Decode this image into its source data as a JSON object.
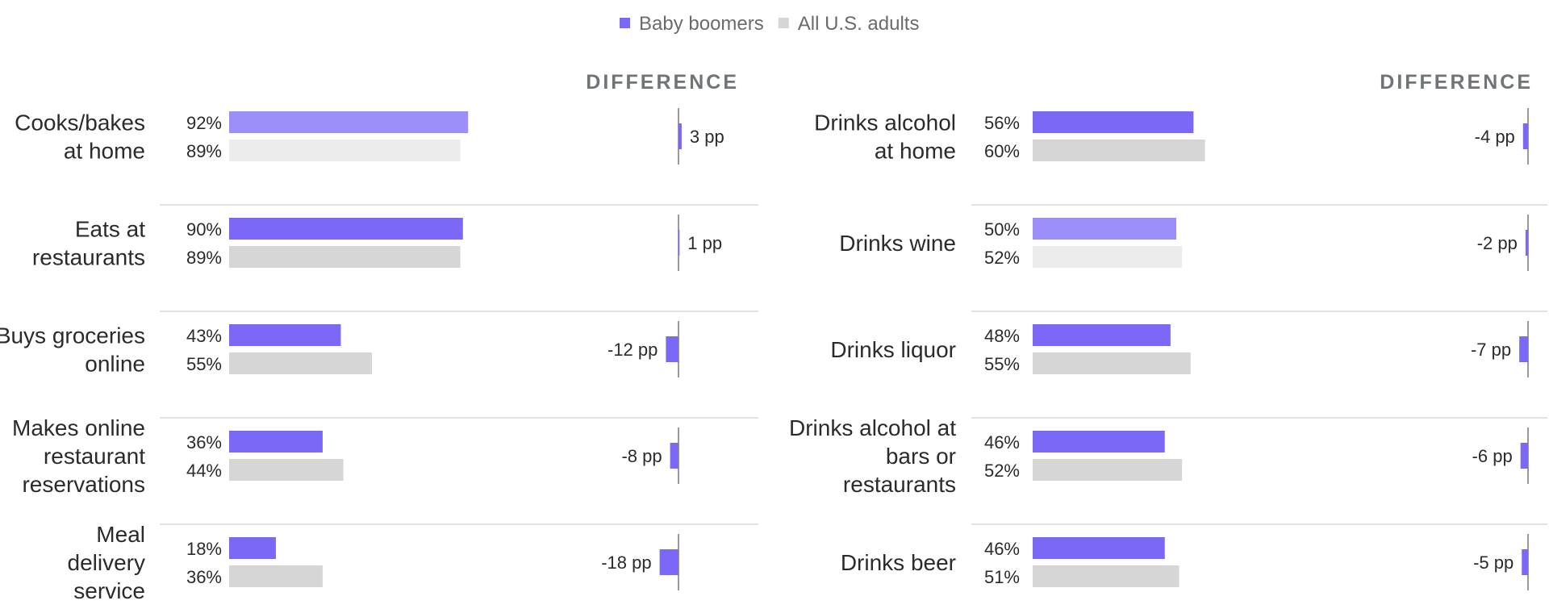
{
  "legend": {
    "series_a": "Baby boomers",
    "series_b": "All U.S. adults"
  },
  "colors": {
    "boomers": "#7b68f6",
    "boomers_highlight": "#9d8ffa",
    "adults": "#d6d6d6",
    "adults_highlight": "#ececec",
    "axis": "#9a9a9a",
    "divider": "#e3e3e3"
  },
  "chart_data": {
    "type": "bar",
    "orientation": "horizontal",
    "xlim": [
      0,
      100
    ],
    "difference_header": "DIFFERENCE",
    "panels": [
      {
        "categories": [
          "Cooks/bakes\nat home",
          "Eats at\nrestaurants",
          "Buys groceries\nonline",
          "Makes online\nrestaurant\nreservations",
          "Meal\ndelivery\nservice"
        ],
        "highlight_index": 0,
        "series": [
          {
            "name": "Baby boomers",
            "values": [
              92,
              90,
              43,
              36,
              18
            ],
            "value_labels": [
              "92%",
              "90%",
              "43%",
              "36%",
              "18%"
            ]
          },
          {
            "name": "All U.S. adults",
            "values": [
              89,
              89,
              55,
              44,
              36
            ],
            "value_labels": [
              "89%",
              "89%",
              "55%",
              "44%",
              "36%"
            ]
          }
        ],
        "difference": [
          3,
          1,
          -12,
          -8,
          -18
        ],
        "difference_labels": [
          "3 pp",
          "1 pp",
          "-12 pp",
          "-8 pp",
          "-18 pp"
        ]
      },
      {
        "categories": [
          "Drinks alcohol\nat home",
          "Drinks wine",
          "Drinks liquor",
          "Drinks alcohol at\nbars or\nrestaurants",
          "Drinks beer"
        ],
        "highlight_index": 1,
        "series": [
          {
            "name": "Baby boomers",
            "values": [
              56,
              50,
              48,
              46,
              46
            ],
            "value_labels": [
              "56%",
              "50%",
              "48%",
              "46%",
              "46%"
            ]
          },
          {
            "name": "All U.S. adults",
            "values": [
              60,
              52,
              55,
              52,
              51
            ],
            "value_labels": [
              "60%",
              "52%",
              "55%",
              "52%",
              "51%"
            ]
          }
        ],
        "difference": [
          -4,
          -2,
          -7,
          -6,
          -5
        ],
        "difference_labels": [
          "-4 pp",
          "-2 pp",
          "-7 pp",
          "-6 pp",
          "-5 pp"
        ]
      }
    ]
  }
}
